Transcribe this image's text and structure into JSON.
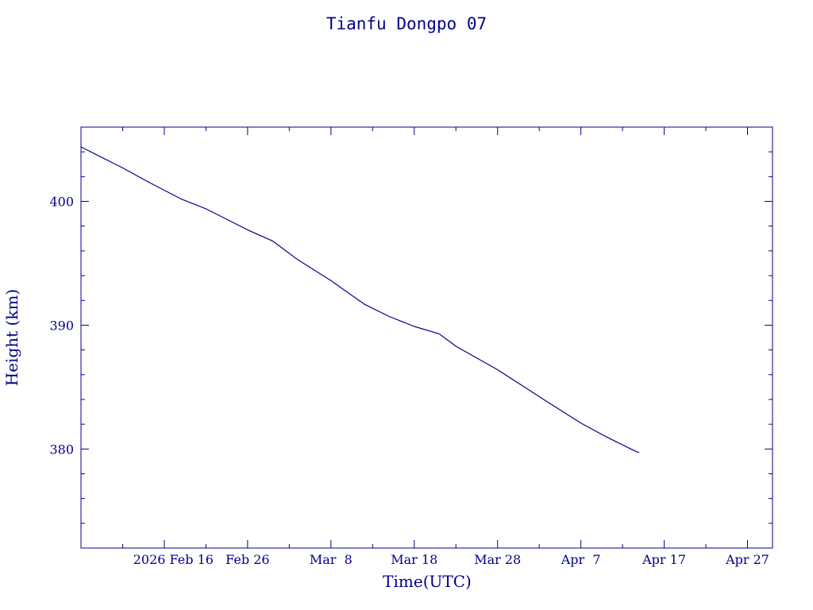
{
  "colors": {
    "ink": "#00008b",
    "background": "#ffffff"
  },
  "chart_data": {
    "type": "line",
    "title": "Tianfu Dongpo 07",
    "xlabel": "Time(UTC)",
    "ylabel": "Height (km)",
    "x_type": "date",
    "xlim": [
      "2026-02-06",
      "2026-04-30"
    ],
    "ylim": [
      372,
      406
    ],
    "x_ticks": [
      {
        "date": "2026-02-16",
        "label": "2026 Feb 16"
      },
      {
        "date": "2026-02-26",
        "label": "Feb 26"
      },
      {
        "date": "2026-03-08",
        "label": "Mar  8"
      },
      {
        "date": "2026-03-18",
        "label": "Mar 18"
      },
      {
        "date": "2026-03-28",
        "label": "Mar 28"
      },
      {
        "date": "2026-04-07",
        "label": "Apr  7"
      },
      {
        "date": "2026-04-17",
        "label": "Apr 17"
      },
      {
        "date": "2026-04-27",
        "label": "Apr 27"
      }
    ],
    "y_ticks": [
      {
        "value": 380,
        "label": "380"
      },
      {
        "value": 390,
        "label": "390"
      },
      {
        "value": 400,
        "label": "400"
      }
    ],
    "grid": false,
    "series": [
      {
        "color": "#00008b",
        "points": [
          {
            "x": "2026-02-06",
            "y": 404.4
          },
          {
            "x": "2026-02-11",
            "y": 402.7
          },
          {
            "x": "2026-02-14",
            "y": 401.6
          },
          {
            "x": "2026-02-16",
            "y": 400.9
          },
          {
            "x": "2026-02-18",
            "y": 400.2
          },
          {
            "x": "2026-02-21",
            "y": 399.4
          },
          {
            "x": "2026-02-26",
            "y": 397.7
          },
          {
            "x": "2026-03-01",
            "y": 396.8
          },
          {
            "x": "2026-03-04",
            "y": 395.3
          },
          {
            "x": "2026-03-08",
            "y": 393.6
          },
          {
            "x": "2026-03-12",
            "y": 391.7
          },
          {
            "x": "2026-03-15",
            "y": 390.7
          },
          {
            "x": "2026-03-18",
            "y": 389.9
          },
          {
            "x": "2026-03-21",
            "y": 389.3
          },
          {
            "x": "2026-03-23",
            "y": 388.3
          },
          {
            "x": "2026-03-28",
            "y": 386.4
          },
          {
            "x": "2026-03-31",
            "y": 385.1
          },
          {
            "x": "2026-04-03",
            "y": 383.8
          },
          {
            "x": "2026-04-07",
            "y": 382.1
          },
          {
            "x": "2026-04-10",
            "y": 381.0
          },
          {
            "x": "2026-04-13",
            "y": 380.0
          },
          {
            "x": "2026-04-14",
            "y": 379.7
          }
        ]
      }
    ]
  }
}
